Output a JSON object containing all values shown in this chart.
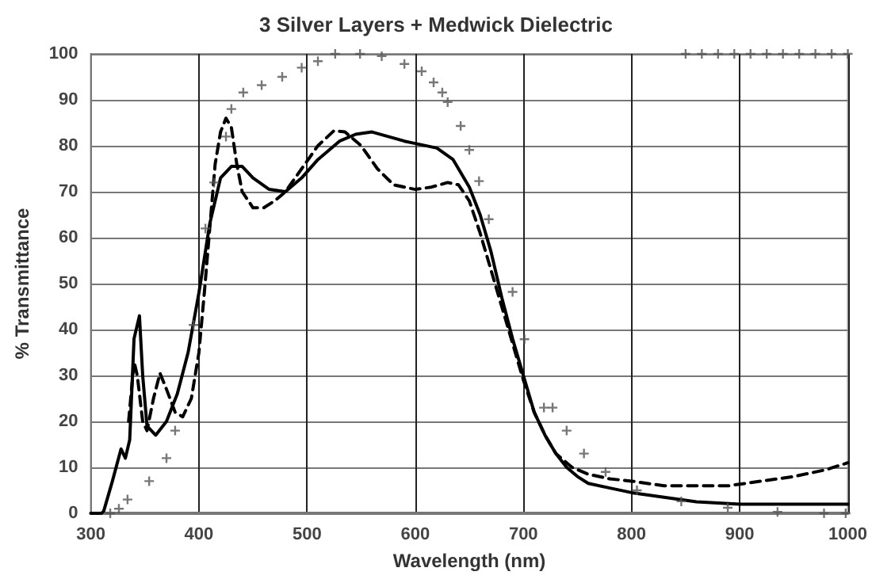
{
  "chart_data": {
    "type": "line",
    "title": "3 Silver Layers + Medwick Dielectric",
    "xlabel": "Wavelength (nm)",
    "ylabel": "% Transmittance",
    "xlim": [
      300,
      1000
    ],
    "xticks": [
      300,
      400,
      500,
      600,
      700,
      800,
      900,
      1000
    ],
    "ylim": [
      0,
      100
    ],
    "yticks": [
      0,
      10,
      20,
      30,
      40,
      50,
      60,
      70,
      80,
      90,
      100
    ],
    "grid": true,
    "series": [
      {
        "color": "#000000",
        "line_style": "solid",
        "marker": "none",
        "x": [
          300,
          310,
          312,
          320,
          328,
          332,
          336,
          340,
          345,
          348,
          352,
          360,
          370,
          380,
          390,
          400,
          410,
          420,
          430,
          440,
          450,
          465,
          480,
          495,
          510,
          530,
          545,
          560,
          575,
          590,
          600,
          620,
          635,
          650,
          660,
          670,
          680,
          690,
          700,
          710,
          720,
          730,
          740,
          750,
          760,
          780,
          800,
          830,
          860,
          900,
          950,
          1000
        ],
        "values": [
          0,
          0,
          0.5,
          7,
          14,
          12,
          16,
          38,
          43,
          30,
          19,
          17,
          20,
          26,
          35,
          48,
          63,
          73,
          75.5,
          75.5,
          73,
          70.5,
          70,
          73,
          77,
          81,
          82.5,
          83,
          82,
          81,
          80.5,
          79.5,
          77,
          71,
          65,
          57,
          47,
          38,
          30,
          22,
          17,
          13,
          10,
          8,
          6.5,
          5.5,
          4.5,
          3.5,
          2.5,
          2,
          2,
          2
        ]
      },
      {
        "color": "#000000",
        "line_style": "dashed",
        "marker": "none",
        "x": [
          335,
          340,
          343,
          348,
          352,
          358,
          364,
          370,
          378,
          385,
          393,
          400,
          405,
          410,
          415,
          420,
          425,
          430,
          435,
          440,
          450,
          460,
          470,
          480,
          495,
          510,
          525,
          535,
          550,
          565,
          580,
          600,
          615,
          630,
          640,
          650,
          660,
          670,
          680,
          690,
          700,
          710,
          720,
          730,
          745,
          760,
          780,
          800,
          830,
          860,
          890,
          920,
          950,
          980,
          1000
        ],
        "values": [
          20,
          33,
          30,
          20,
          18,
          25,
          30.5,
          27,
          22,
          21,
          25,
          35,
          48,
          62,
          76,
          83,
          86,
          84,
          76,
          70,
          66.5,
          66.5,
          68,
          70,
          75,
          80,
          83.3,
          83,
          80,
          75,
          71.5,
          70.5,
          71,
          72,
          71.5,
          68,
          61,
          53,
          45,
          37,
          29,
          22,
          17,
          13,
          10,
          8.5,
          7.5,
          7,
          6,
          6,
          6,
          7,
          8,
          9.5,
          11
        ]
      },
      {
        "type": "scatter",
        "color": "#555555",
        "marker": "cross",
        "x": [
          318,
          326,
          334,
          354,
          370,
          378,
          395,
          406,
          414,
          425,
          430,
          441,
          458,
          477,
          495,
          510,
          526,
          549,
          569,
          590,
          606,
          617,
          625,
          630,
          642,
          650,
          659,
          668,
          690,
          701,
          719,
          727,
          740,
          756,
          776,
          805,
          846,
          889,
          935,
          978,
          998,
          850,
          865,
          880,
          895,
          910,
          925,
          940,
          955,
          970,
          985,
          1000
        ],
        "values": [
          0,
          1,
          3,
          7,
          12,
          18,
          41,
          62,
          72,
          82,
          88,
          91.6,
          93.2,
          95,
          97,
          98.4,
          100,
          100,
          99.5,
          97.8,
          96.2,
          93.8,
          91.6,
          89.5,
          84.3,
          79.1,
          72.3,
          64,
          48.2,
          37.9,
          23,
          23,
          18,
          13,
          9,
          5,
          2.6,
          1.2,
          0.3,
          0,
          0,
          100,
          100,
          100,
          100,
          100,
          100,
          100,
          100,
          100,
          100,
          100
        ]
      }
    ]
  }
}
